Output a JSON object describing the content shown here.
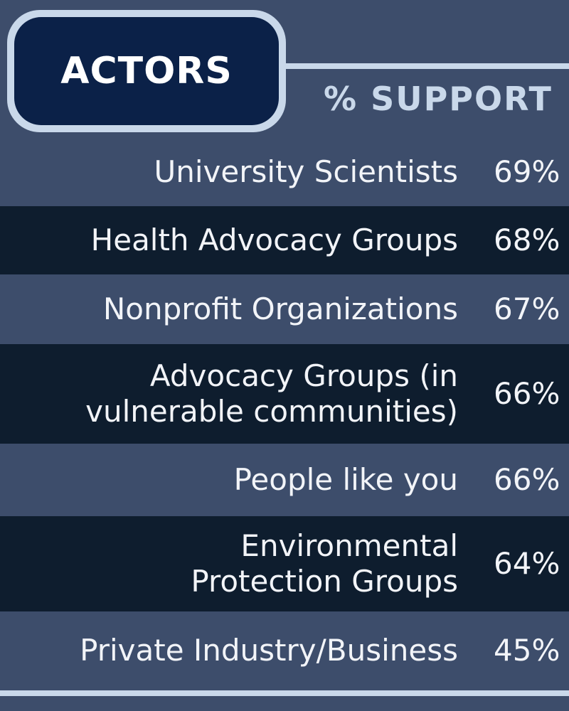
{
  "badge": {
    "title": "ACTORS"
  },
  "chart_data": {
    "type": "table",
    "column_headers": [
      "ACTORS",
      "% SUPPORT"
    ],
    "rows": [
      {
        "label": "University Scientists",
        "value": "69%"
      },
      {
        "label": "Health Advocacy Groups",
        "value": "68%"
      },
      {
        "label": "Nonprofit Organizations",
        "value": "67%"
      },
      {
        "label": "Advocacy Groups (in\nvulnerable communities)",
        "value": "66%"
      },
      {
        "label": "People like you",
        "value": "66%"
      },
      {
        "label": "Environmental\nProtection Groups",
        "value": "64%"
      },
      {
        "label": "Private Industry/Business",
        "value": "45%"
      }
    ],
    "values": [
      69,
      68,
      67,
      66,
      66,
      64,
      45
    ]
  },
  "colors": {
    "background": "#3d4d6b",
    "row_dark": "#0e1d2e",
    "accent": "#c9d8ea",
    "badge_fill": "#0b2148",
    "text": "#f2f4f8"
  }
}
